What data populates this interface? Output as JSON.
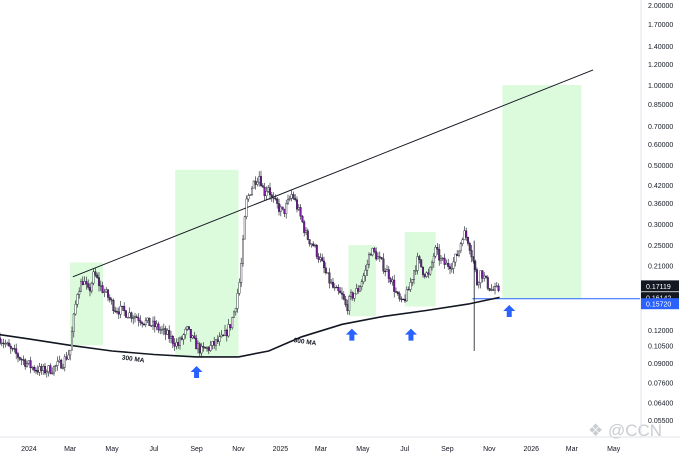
{
  "chart_data": {
    "type": "candlestick",
    "title": "",
    "xlabel": "",
    "ylabel": "",
    "y_scale": "log",
    "ylim": [
      0.05,
      2.0
    ],
    "xlim": [
      "2023-11-20",
      "2026-06-01"
    ],
    "y_ticks": [
      "2.00000",
      "1.70000",
      "1.40000",
      "1.20000",
      "1.00000",
      "0.85000",
      "0.70000",
      "0.60000",
      "0.50000",
      "0.42000",
      "0.36000",
      "0.30000",
      "0.25000",
      "0.21000",
      "0.18000",
      "0.12000",
      "0.10500",
      "0.09000",
      "0.07600",
      "0.06400",
      "0.05500"
    ],
    "x_ticks": [
      {
        "label": "2024",
        "date": "2024-01-01"
      },
      {
        "label": "Mar",
        "date": "2024-03-01"
      },
      {
        "label": "May",
        "date": "2024-05-01"
      },
      {
        "label": "Jul",
        "date": "2024-07-01"
      },
      {
        "label": "Sep",
        "date": "2024-09-01"
      },
      {
        "label": "Nov",
        "date": "2024-11-01"
      },
      {
        "label": "2025",
        "date": "2025-01-01"
      },
      {
        "label": "Mar",
        "date": "2025-03-01"
      },
      {
        "label": "May",
        "date": "2025-05-01"
      },
      {
        "label": "Jul",
        "date": "2025-07-01"
      },
      {
        "label": "Sep",
        "date": "2025-09-01"
      },
      {
        "label": "Nov",
        "date": "2025-11-01"
      },
      {
        "label": "2026",
        "date": "2026-01-01"
      },
      {
        "label": "Mar",
        "date": "2026-03-01"
      },
      {
        "label": "May",
        "date": "2026-05-01"
      }
    ],
    "price_badges": [
      {
        "label": "0.17119",
        "value": 0.17119,
        "color": "#131722"
      },
      {
        "label": "0.16142",
        "value": 0.16142,
        "color": "#131722"
      },
      {
        "label": "0.15720",
        "value": 0.1572,
        "color": "#2962ff"
      }
    ],
    "horizontal_line": {
      "value": 0.1572,
      "from": "2025-11-20",
      "color": "#2962ff"
    },
    "close_price": [
      [
        "2023-11-20",
        0.112
      ],
      [
        "2023-12-05",
        0.101
      ],
      [
        "2023-12-20",
        0.094
      ],
      [
        "2024-01-05",
        0.087
      ],
      [
        "2024-01-20",
        0.084
      ],
      [
        "2024-02-05",
        0.086
      ],
      [
        "2024-02-20",
        0.091
      ],
      [
        "2024-03-01",
        0.1
      ],
      [
        "2024-03-05",
        0.125
      ],
      [
        "2024-03-12",
        0.17
      ],
      [
        "2024-03-20",
        0.185
      ],
      [
        "2024-03-28",
        0.165
      ],
      [
        "2024-04-05",
        0.195
      ],
      [
        "2024-04-14",
        0.175
      ],
      [
        "2024-04-25",
        0.16
      ],
      [
        "2024-05-05",
        0.145
      ],
      [
        "2024-05-20",
        0.14
      ],
      [
        "2024-06-05",
        0.135
      ],
      [
        "2024-06-20",
        0.128
      ],
      [
        "2024-07-05",
        0.123
      ],
      [
        "2024-07-20",
        0.115
      ],
      [
        "2024-08-05",
        0.105
      ],
      [
        "2024-08-18",
        0.12
      ],
      [
        "2024-08-28",
        0.108
      ],
      [
        "2024-09-08",
        0.1
      ],
      [
        "2024-09-20",
        0.103
      ],
      [
        "2024-10-01",
        0.108
      ],
      [
        "2024-10-10",
        0.112
      ],
      [
        "2024-10-20",
        0.125
      ],
      [
        "2024-10-27",
        0.145
      ],
      [
        "2024-11-03",
        0.185
      ],
      [
        "2024-11-08",
        0.26
      ],
      [
        "2024-11-12",
        0.36
      ],
      [
        "2024-11-18",
        0.4
      ],
      [
        "2024-11-25",
        0.44
      ],
      [
        "2024-12-02",
        0.46
      ],
      [
        "2024-12-08",
        0.39
      ],
      [
        "2024-12-14",
        0.42
      ],
      [
        "2024-12-20",
        0.37
      ],
      [
        "2024-12-28",
        0.35
      ],
      [
        "2025-01-05",
        0.33
      ],
      [
        "2025-01-12",
        0.36
      ],
      [
        "2025-01-18",
        0.39
      ],
      [
        "2025-01-25",
        0.35
      ],
      [
        "2025-02-01",
        0.31
      ],
      [
        "2025-02-08",
        0.27
      ],
      [
        "2025-02-18",
        0.25
      ],
      [
        "2025-02-28",
        0.22
      ],
      [
        "2025-03-10",
        0.19
      ],
      [
        "2025-03-20",
        0.17
      ],
      [
        "2025-04-01",
        0.16
      ],
      [
        "2025-04-07",
        0.145
      ],
      [
        "2025-04-14",
        0.16
      ],
      [
        "2025-04-24",
        0.17
      ],
      [
        "2025-05-05",
        0.2
      ],
      [
        "2025-05-12",
        0.24
      ],
      [
        "2025-05-20",
        0.23
      ],
      [
        "2025-05-30",
        0.21
      ],
      [
        "2025-06-10",
        0.19
      ],
      [
        "2025-06-20",
        0.16
      ],
      [
        "2025-06-26",
        0.15
      ],
      [
        "2025-07-05",
        0.165
      ],
      [
        "2025-07-14",
        0.2
      ],
      [
        "2025-07-20",
        0.22
      ],
      [
        "2025-07-28",
        0.2
      ],
      [
        "2025-08-05",
        0.19
      ],
      [
        "2025-08-14",
        0.24
      ],
      [
        "2025-08-22",
        0.22
      ],
      [
        "2025-08-30",
        0.21
      ],
      [
        "2025-09-10",
        0.215
      ],
      [
        "2025-09-18",
        0.24
      ],
      [
        "2025-09-24",
        0.28
      ],
      [
        "2025-10-02",
        0.26
      ],
      [
        "2025-10-10",
        0.21
      ],
      [
        "2025-10-14",
        0.18
      ],
      [
        "2025-10-20",
        0.2
      ],
      [
        "2025-10-28",
        0.18
      ],
      [
        "2025-11-04",
        0.17
      ],
      [
        "2025-11-10",
        0.168
      ],
      [
        "2025-11-16",
        0.171
      ]
    ],
    "wick_spike": {
      "date": "2025-10-10",
      "low": 0.1,
      "high": 0.26
    },
    "ma300": {
      "label": "300 MA",
      "points": [
        [
          "2023-11-01",
          0.117
        ],
        [
          "2024-01-01",
          0.111
        ],
        [
          "2024-03-01",
          0.105
        ],
        [
          "2024-05-01",
          0.1
        ],
        [
          "2024-07-01",
          0.097
        ],
        [
          "2024-09-01",
          0.095
        ],
        [
          "2024-11-01",
          0.095
        ],
        [
          "2024-12-15",
          0.1
        ],
        [
          "2025-02-01",
          0.113
        ],
        [
          "2025-04-01",
          0.126
        ],
        [
          "2025-06-01",
          0.135
        ],
        [
          "2025-08-01",
          0.142
        ],
        [
          "2025-10-01",
          0.15
        ],
        [
          "2025-11-16",
          0.159
        ]
      ],
      "label_positions": [
        {
          "date": "2024-05-15",
          "value": 0.093
        },
        {
          "date": "2025-01-20",
          "value": 0.108
        }
      ]
    },
    "trendline": {
      "points": [
        [
          "2024-03-05",
          0.19
        ],
        [
          "2026-04-01",
          1.14
        ]
      ]
    },
    "highlight_zones": [
      {
        "from": "2024-03-01",
        "to": "2024-04-18",
        "low": 0.105,
        "high": 0.215
      },
      {
        "from": "2024-08-01",
        "to": "2024-11-01",
        "low": 0.095,
        "high": 0.48
      },
      {
        "from": "2025-04-10",
        "to": "2025-05-20",
        "low": 0.135,
        "high": 0.25
      },
      {
        "from": "2025-07-01",
        "to": "2025-08-15",
        "low": 0.147,
        "high": 0.28
      },
      {
        "from": "2025-11-20",
        "to": "2026-03-15",
        "low": 0.1572,
        "high": 1.0
      }
    ],
    "arrows": [
      "2024-09-01",
      "2025-04-15",
      "2025-07-10",
      "2025-11-30"
    ],
    "colors": {
      "up": "#ffffff",
      "down": "#7b1fa2",
      "ma": "#131722",
      "trend": "#131722",
      "zone": "#dcfadc",
      "arrow": "#2962ff",
      "axis_text": "#131722"
    },
    "watermark": "CCN"
  }
}
